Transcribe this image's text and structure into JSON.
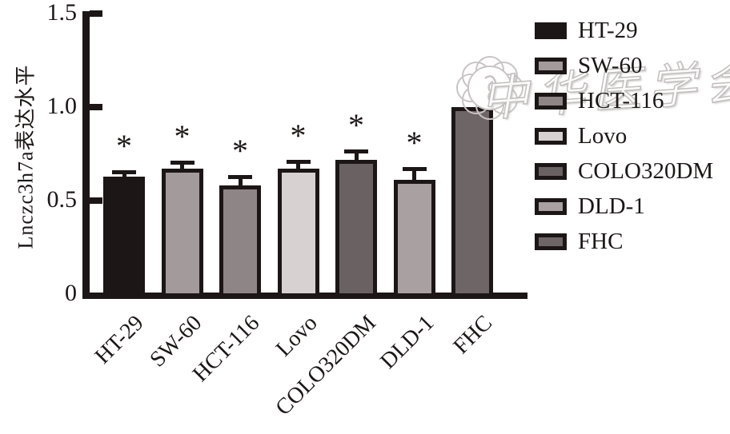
{
  "chart_data": {
    "type": "bar",
    "title": "",
    "xlabel": "",
    "ylabel": "Lnczc3h7a表达水平",
    "ylim": [
      0,
      1.5
    ],
    "yticks": [
      0,
      0.5,
      1.0,
      1.5
    ],
    "ytick_labels": [
      "0",
      "0.5",
      "1.0",
      "1.5"
    ],
    "categories": [
      "HT-29",
      "SW-60",
      "HCT-116",
      "Lovo",
      "COLO320DM",
      "DLD-1",
      "FHC"
    ],
    "values": [
      0.63,
      0.67,
      0.58,
      0.67,
      0.72,
      0.61,
      1.0
    ],
    "errors": [
      0.025,
      0.035,
      0.05,
      0.04,
      0.045,
      0.06,
      0
    ],
    "significance": [
      "*",
      "*",
      "*",
      "*",
      "*",
      "*",
      ""
    ],
    "bar_colors": [
      "#1c1616",
      "#a39b9b",
      "#8e8686",
      "#d8d1d1",
      "#6a6262",
      "#a9a1a1",
      "#6e6666"
    ],
    "bar_border_color": "#1c1616",
    "axis_color": "#1c1616",
    "grid": false,
    "legend_position": "right",
    "legend": [
      {
        "label": "HT-29",
        "color": "#1c1616"
      },
      {
        "label": "SW-60",
        "color": "#a39b9b"
      },
      {
        "label": "HCT-116",
        "color": "#8e8686"
      },
      {
        "label": "Lovo",
        "color": "#d8d1d1"
      },
      {
        "label": "COLO320DM",
        "color": "#6a6262"
      },
      {
        "label": "DLD-1",
        "color": "#a9a1a1"
      },
      {
        "label": "FHC",
        "color": "#6e6666"
      }
    ]
  },
  "watermark": {
    "text": "中华医学会",
    "color": "#c3bebe",
    "seal": "scalloped-flower-seal"
  }
}
